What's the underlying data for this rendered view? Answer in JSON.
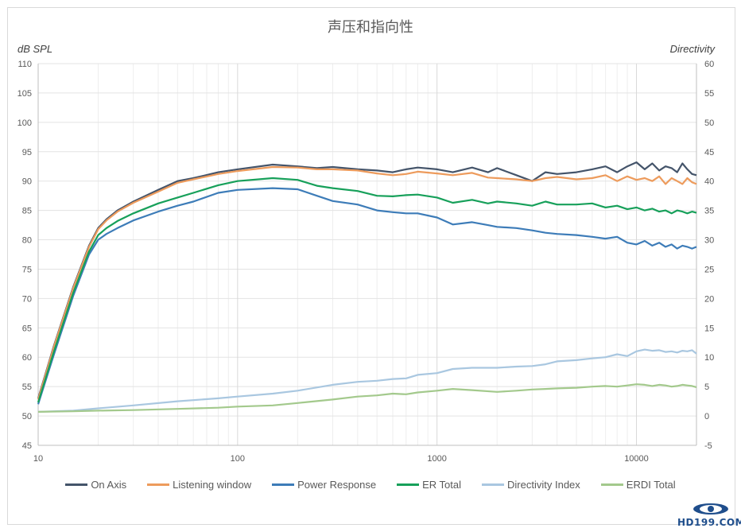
{
  "chart_data": {
    "type": "line",
    "title": "声压和指向性",
    "ylabel": "dB SPL",
    "y2label": "Directivity",
    "xscale": "log",
    "xlim": [
      10,
      20000
    ],
    "ylim": [
      45,
      110
    ],
    "y2lim": [
      -5,
      60
    ],
    "x_ticks": [
      "10",
      "100",
      "1000",
      "10000"
    ],
    "y_ticks": [
      "45",
      "50",
      "55",
      "60",
      "65",
      "70",
      "75",
      "80",
      "85",
      "90",
      "95",
      "100",
      "105",
      "110"
    ],
    "y2_ticks": [
      "-5",
      "0",
      "5",
      "10",
      "15",
      "20",
      "25",
      "30",
      "35",
      "40",
      "45",
      "50",
      "55",
      "60"
    ],
    "legend_position": "bottom",
    "series": [
      {
        "name": "On Axis",
        "axis": "left",
        "color": "#44546a",
        "x": [
          10,
          12,
          15,
          18,
          20,
          22,
          25,
          30,
          40,
          50,
          60,
          80,
          100,
          150,
          200,
          250,
          300,
          400,
          500,
          600,
          700,
          800,
          1000,
          1200,
          1500,
          1800,
          2000,
          2500,
          3000,
          3500,
          4000,
          5000,
          6000,
          7000,
          8000,
          9000,
          10000,
          11000,
          12000,
          13000,
          14000,
          15000,
          16000,
          17000,
          18000,
          19000,
          20000
        ],
        "y": [
          53,
          62,
          72,
          79,
          82,
          83.5,
          85,
          86.5,
          88.5,
          90,
          90.5,
          91.5,
          92,
          92.8,
          92.5,
          92.2,
          92.4,
          92.0,
          91.8,
          91.5,
          92.0,
          92.3,
          92.0,
          91.5,
          92.3,
          91.5,
          92.2,
          91.0,
          90.0,
          91.5,
          91.2,
          91.5,
          92.0,
          92.5,
          91.5,
          92.5,
          93.2,
          92.0,
          93.0,
          91.8,
          92.5,
          92.2,
          91.5,
          93.0,
          92.0,
          91.2,
          91.0
        ]
      },
      {
        "name": "Listening window",
        "axis": "left",
        "color": "#ed9b5c",
        "x": [
          10,
          12,
          15,
          18,
          20,
          22,
          25,
          30,
          40,
          50,
          60,
          80,
          100,
          150,
          200,
          250,
          300,
          400,
          500,
          600,
          700,
          800,
          1000,
          1200,
          1500,
          1800,
          2000,
          2500,
          3000,
          3500,
          4000,
          5000,
          6000,
          7000,
          8000,
          9000,
          10000,
          11000,
          12000,
          13000,
          14000,
          15000,
          16000,
          17000,
          18000,
          19000,
          20000
        ],
        "y": [
          52.8,
          61.8,
          71.8,
          78.8,
          81.8,
          83.3,
          84.8,
          86.3,
          88.2,
          89.7,
          90.3,
          91.2,
          91.7,
          92.4,
          92.3,
          92.0,
          92.0,
          91.8,
          91.3,
          91.0,
          91.2,
          91.6,
          91.3,
          91.0,
          91.4,
          90.6,
          90.5,
          90.3,
          90.0,
          90.5,
          90.7,
          90.3,
          90.5,
          91.0,
          90.0,
          90.8,
          90.2,
          90.5,
          90.0,
          90.8,
          89.5,
          90.5,
          90.0,
          89.5,
          90.5,
          89.8,
          89.5
        ]
      },
      {
        "name": "Power Response",
        "axis": "left",
        "color": "#3d7cb8",
        "x": [
          10,
          12,
          15,
          18,
          20,
          22,
          25,
          30,
          40,
          50,
          60,
          80,
          100,
          150,
          200,
          250,
          300,
          400,
          500,
          600,
          700,
          800,
          1000,
          1200,
          1500,
          1800,
          2000,
          2500,
          3000,
          3500,
          4000,
          5000,
          6000,
          7000,
          8000,
          9000,
          10000,
          11000,
          12000,
          13000,
          14000,
          15000,
          16000,
          17000,
          18000,
          19000,
          20000
        ],
        "y": [
          52,
          60.5,
          70.5,
          77.5,
          80,
          81,
          82,
          83.3,
          84.8,
          85.8,
          86.5,
          88,
          88.5,
          88.8,
          88.6,
          87.5,
          86.6,
          86.0,
          85.0,
          84.7,
          84.5,
          84.5,
          83.8,
          82.6,
          83.0,
          82.5,
          82.2,
          82.0,
          81.6,
          81.2,
          81.0,
          80.8,
          80.5,
          80.2,
          80.5,
          79.5,
          79.2,
          79.8,
          79.0,
          79.5,
          78.8,
          79.2,
          78.5,
          79.0,
          78.8,
          78.5,
          78.8
        ]
      },
      {
        "name": "ER Total",
        "axis": "left",
        "color": "#17a05a",
        "x": [
          10,
          12,
          15,
          18,
          20,
          22,
          25,
          30,
          40,
          50,
          60,
          80,
          100,
          150,
          200,
          250,
          300,
          400,
          500,
          600,
          700,
          800,
          1000,
          1200,
          1500,
          1800,
          2000,
          2500,
          3000,
          3500,
          4000,
          5000,
          6000,
          7000,
          8000,
          9000,
          10000,
          11000,
          12000,
          13000,
          14000,
          15000,
          16000,
          17000,
          18000,
          19000,
          20000
        ],
        "y": [
          52.3,
          61,
          71,
          78,
          80.8,
          82,
          83.2,
          84.5,
          86.2,
          87.2,
          88,
          89.3,
          90,
          90.5,
          90.2,
          89.2,
          88.8,
          88.3,
          87.5,
          87.4,
          87.6,
          87.7,
          87.2,
          86.3,
          86.8,
          86.2,
          86.5,
          86.2,
          85.8,
          86.5,
          86.0,
          86.0,
          86.2,
          85.5,
          85.8,
          85.2,
          85.5,
          85.0,
          85.3,
          84.8,
          85.0,
          84.5,
          85.0,
          84.8,
          84.5,
          84.8,
          84.6
        ]
      },
      {
        "name": "Directivity Index",
        "axis": "right",
        "color": "#a9c7e0",
        "x": [
          10,
          15,
          20,
          30,
          50,
          80,
          100,
          150,
          200,
          300,
          400,
          500,
          600,
          700,
          800,
          1000,
          1200,
          1500,
          2000,
          2500,
          3000,
          3500,
          4000,
          5000,
          6000,
          7000,
          8000,
          9000,
          10000,
          11000,
          12000,
          13000,
          14000,
          15000,
          16000,
          17000,
          18000,
          19000,
          20000
        ],
        "y": [
          0.7,
          0.9,
          1.3,
          1.8,
          2.5,
          3,
          3.3,
          3.8,
          4.3,
          5.3,
          5.8,
          6.0,
          6.3,
          6.4,
          7.0,
          7.3,
          8.0,
          8.2,
          8.2,
          8.4,
          8.5,
          8.8,
          9.3,
          9.5,
          9.8,
          10.0,
          10.5,
          10.2,
          11.0,
          11.3,
          11.1,
          11.2,
          10.9,
          11.0,
          10.8,
          11.1,
          11.0,
          11.2,
          10.6
        ]
      },
      {
        "name": "ERDI Total",
        "axis": "right",
        "color": "#a3c98c",
        "x": [
          10,
          15,
          20,
          30,
          50,
          80,
          100,
          150,
          200,
          300,
          400,
          500,
          600,
          700,
          800,
          1000,
          1200,
          1500,
          2000,
          2500,
          3000,
          3500,
          4000,
          5000,
          6000,
          7000,
          8000,
          9000,
          10000,
          11000,
          12000,
          13000,
          14000,
          15000,
          16000,
          17000,
          18000,
          19000,
          20000
        ],
        "y": [
          0.7,
          0.8,
          0.9,
          1.0,
          1.2,
          1.4,
          1.6,
          1.8,
          2.2,
          2.8,
          3.3,
          3.5,
          3.8,
          3.7,
          4.0,
          4.3,
          4.6,
          4.4,
          4.1,
          4.3,
          4.5,
          4.6,
          4.7,
          4.8,
          5.0,
          5.1,
          5.0,
          5.2,
          5.4,
          5.3,
          5.1,
          5.3,
          5.2,
          5.0,
          5.1,
          5.3,
          5.2,
          5.1,
          4.9
        ]
      }
    ]
  },
  "watermark": {
    "text": "HD199.COM"
  }
}
